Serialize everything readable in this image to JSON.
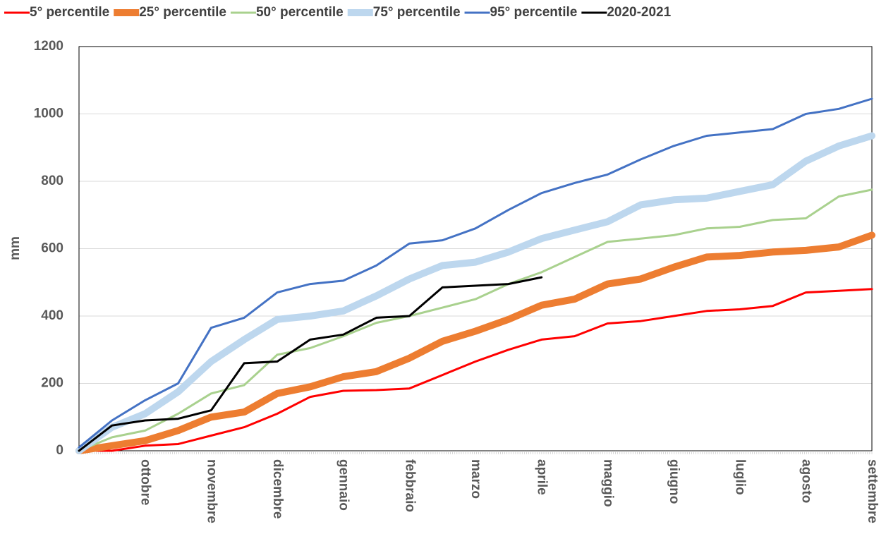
{
  "chart_data": {
    "type": "line",
    "y_label": "mm",
    "categories": [
      null,
      null,
      "ottobre",
      null,
      "novembre",
      null,
      "dicembre",
      null,
      "gennaio",
      null,
      "febbraio",
      null,
      "marzo",
      null,
      "aprile",
      null,
      "maggio",
      null,
      "giugno",
      null,
      "luglio",
      null,
      "agosto",
      null,
      "settembre"
    ],
    "series": [
      {
        "name": "5° percentile",
        "color": "#ff0000",
        "values": [
          0,
          0,
          15,
          20,
          45,
          70,
          110,
          160,
          178,
          180,
          185,
          225,
          265,
          300,
          330,
          340,
          378,
          385,
          400,
          415,
          420,
          430,
          470,
          475,
          480
        ]
      },
      {
        "name": "25° percentile",
        "color": "#ed7d31",
        "values": [
          0,
          15,
          30,
          60,
          100,
          115,
          170,
          190,
          220,
          235,
          275,
          325,
          355,
          390,
          432,
          450,
          495,
          510,
          545,
          575,
          580,
          590,
          595,
          605,
          640
        ]
      },
      {
        "name": "50° percentile",
        "color": "#a9d18e",
        "values": [
          0,
          40,
          60,
          110,
          170,
          195,
          285,
          305,
          340,
          380,
          400,
          425,
          450,
          495,
          530,
          575,
          620,
          630,
          640,
          660,
          665,
          685,
          690,
          755,
          775
        ]
      },
      {
        "name": "75° percentile",
        "color": "#bdd7ee",
        "values": [
          0,
          70,
          110,
          175,
          265,
          330,
          390,
          400,
          415,
          460,
          510,
          550,
          560,
          590,
          630,
          655,
          680,
          730,
          745,
          750,
          770,
          790,
          860,
          905,
          935
        ]
      },
      {
        "name": "95° percentile",
        "color": "#4472c4",
        "values": [
          10,
          90,
          150,
          200,
          365,
          395,
          470,
          495,
          505,
          550,
          615,
          625,
          660,
          715,
          765,
          795,
          820,
          865,
          905,
          935,
          945,
          955,
          1000,
          1015,
          1045
        ]
      },
      {
        "name": "2020-2021",
        "color": "#000000",
        "values": [
          0,
          75,
          90,
          95,
          120,
          260,
          265,
          330,
          345,
          395,
          400,
          485,
          490,
          495,
          515,
          null,
          null,
          null,
          null,
          null,
          null,
          null,
          null,
          null,
          null
        ]
      }
    ],
    "ylim": [
      0,
      1200
    ],
    "yticks": [
      0,
      200,
      400,
      600,
      800,
      1000,
      1200
    ],
    "grid": true
  }
}
